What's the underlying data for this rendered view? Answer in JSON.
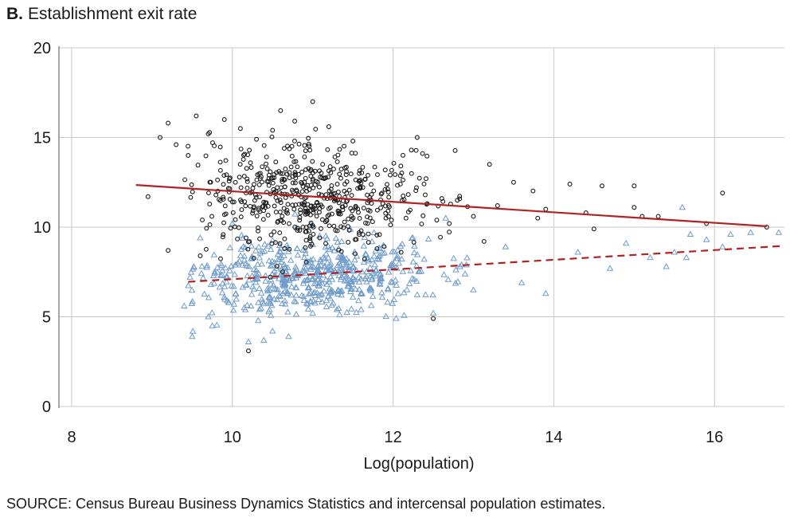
{
  "panel": {
    "letter": "B.",
    "title": "Establishment exit rate"
  },
  "source": "SOURCE: Census Bureau Business Dynamics Statistics and intercensal population estimates.",
  "colors": {
    "black_series": "#1a1a1a",
    "blue_series": "#6f9ccb",
    "fit_line": "#b22222",
    "grid": "#c8c8c8",
    "axis": "#555555"
  },
  "chart_data": {
    "type": "scatter",
    "title": "Establishment exit rate",
    "xlabel": "Log(population)",
    "ylabel": "",
    "xlim": [
      8,
      16.8
    ],
    "ylim": [
      0,
      20
    ],
    "xticks": [
      8,
      10,
      12,
      14,
      16
    ],
    "yticks": [
      0,
      5,
      10,
      15,
      20
    ],
    "grid": true,
    "series": [
      {
        "marker": "circle-open",
        "color": "#1a1a1a",
        "points": [
          [
            9.1,
            15.0
          ],
          [
            9.2,
            15.8
          ],
          [
            9.3,
            14.6
          ],
          [
            9.45,
            14.0
          ],
          [
            9.55,
            16.2
          ],
          [
            9.7,
            15.2
          ],
          [
            9.9,
            16.0
          ],
          [
            10.1,
            15.5
          ],
          [
            10.3,
            14.9
          ],
          [
            10.5,
            15.4
          ],
          [
            10.6,
            16.5
          ],
          [
            11.0,
            17.0
          ],
          [
            11.2,
            15.6
          ],
          [
            11.5,
            14.8
          ],
          [
            12.3,
            15.0
          ],
          [
            13.2,
            13.5
          ],
          [
            13.5,
            12.5
          ],
          [
            14.2,
            12.4
          ],
          [
            14.6,
            12.3
          ],
          [
            15.0,
            12.3
          ],
          [
            16.1,
            11.9
          ],
          [
            15.0,
            11.1
          ],
          [
            15.3,
            10.6
          ],
          [
            15.9,
            10.2
          ],
          [
            16.65,
            10.0
          ],
          [
            8.95,
            11.7
          ],
          [
            9.2,
            8.7
          ],
          [
            9.6,
            8.4
          ],
          [
            10.2,
            3.1
          ],
          [
            12.5,
            4.9
          ],
          [
            12.7,
            10.2
          ],
          [
            13.0,
            10.6
          ],
          [
            13.8,
            10.5
          ],
          [
            14.5,
            9.9
          ],
          [
            11.8,
            8.8
          ],
          [
            12.1,
            8.6
          ],
          [
            10.6,
            13.0
          ],
          [
            11.0,
            12.6
          ],
          [
            11.4,
            12.4
          ],
          [
            11.9,
            12.1
          ],
          [
            12.4,
            11.8
          ],
          [
            12.8,
            11.5
          ],
          [
            13.3,
            11.2
          ],
          [
            13.9,
            11.0
          ],
          [
            14.4,
            10.8
          ],
          [
            15.1,
            10.6
          ]
        ],
        "generated": {
          "count": 540,
          "x_center": 10.95,
          "x_sd": 0.7,
          "x_range": [
            9.4,
            14.8
          ],
          "y_center": 11.8,
          "y_slope": -0.18,
          "y_sd": 1.45,
          "seed": 7
        }
      },
      {
        "marker": "triangle-open",
        "color": "#6f9ccb",
        "points": [
          [
            9.4,
            5.6
          ],
          [
            9.5,
            3.9
          ],
          [
            9.6,
            9.4
          ],
          [
            9.7,
            5.0
          ],
          [
            9.75,
            4.5
          ],
          [
            10.0,
            10.2
          ],
          [
            10.2,
            3.6
          ],
          [
            10.5,
            4.2
          ],
          [
            10.7,
            3.9
          ],
          [
            11.0,
            5.2
          ],
          [
            11.3,
            5.4
          ],
          [
            12.5,
            5.2
          ],
          [
            13.0,
            6.5
          ],
          [
            13.6,
            6.9
          ],
          [
            13.9,
            6.3
          ],
          [
            14.7,
            7.7
          ],
          [
            15.2,
            8.3
          ],
          [
            15.4,
            7.8
          ],
          [
            15.6,
            11.1
          ],
          [
            15.7,
            9.6
          ],
          [
            15.9,
            9.3
          ],
          [
            16.2,
            9.6
          ],
          [
            16.45,
            9.7
          ],
          [
            16.8,
            9.7
          ],
          [
            16.1,
            8.9
          ],
          [
            15.5,
            8.6
          ],
          [
            15.65,
            8.3
          ],
          [
            14.9,
            9.1
          ],
          [
            14.3,
            8.6
          ],
          [
            13.4,
            8.9
          ]
        ],
        "generated": {
          "count": 560,
          "x_center": 11.0,
          "x_sd": 0.75,
          "x_range": [
            9.45,
            14.6
          ],
          "y_center": 7.3,
          "y_slope": 0.25,
          "y_sd": 1.05,
          "seed": 13
        }
      }
    ],
    "fit_lines": [
      {
        "style": "solid",
        "x": [
          8.8,
          16.65
        ],
        "y": [
          12.35,
          10.05
        ],
        "color": "#b22222"
      },
      {
        "style": "dashed",
        "x": [
          9.45,
          16.85
        ],
        "y": [
          6.95,
          8.95
        ],
        "color": "#b22222"
      }
    ]
  }
}
